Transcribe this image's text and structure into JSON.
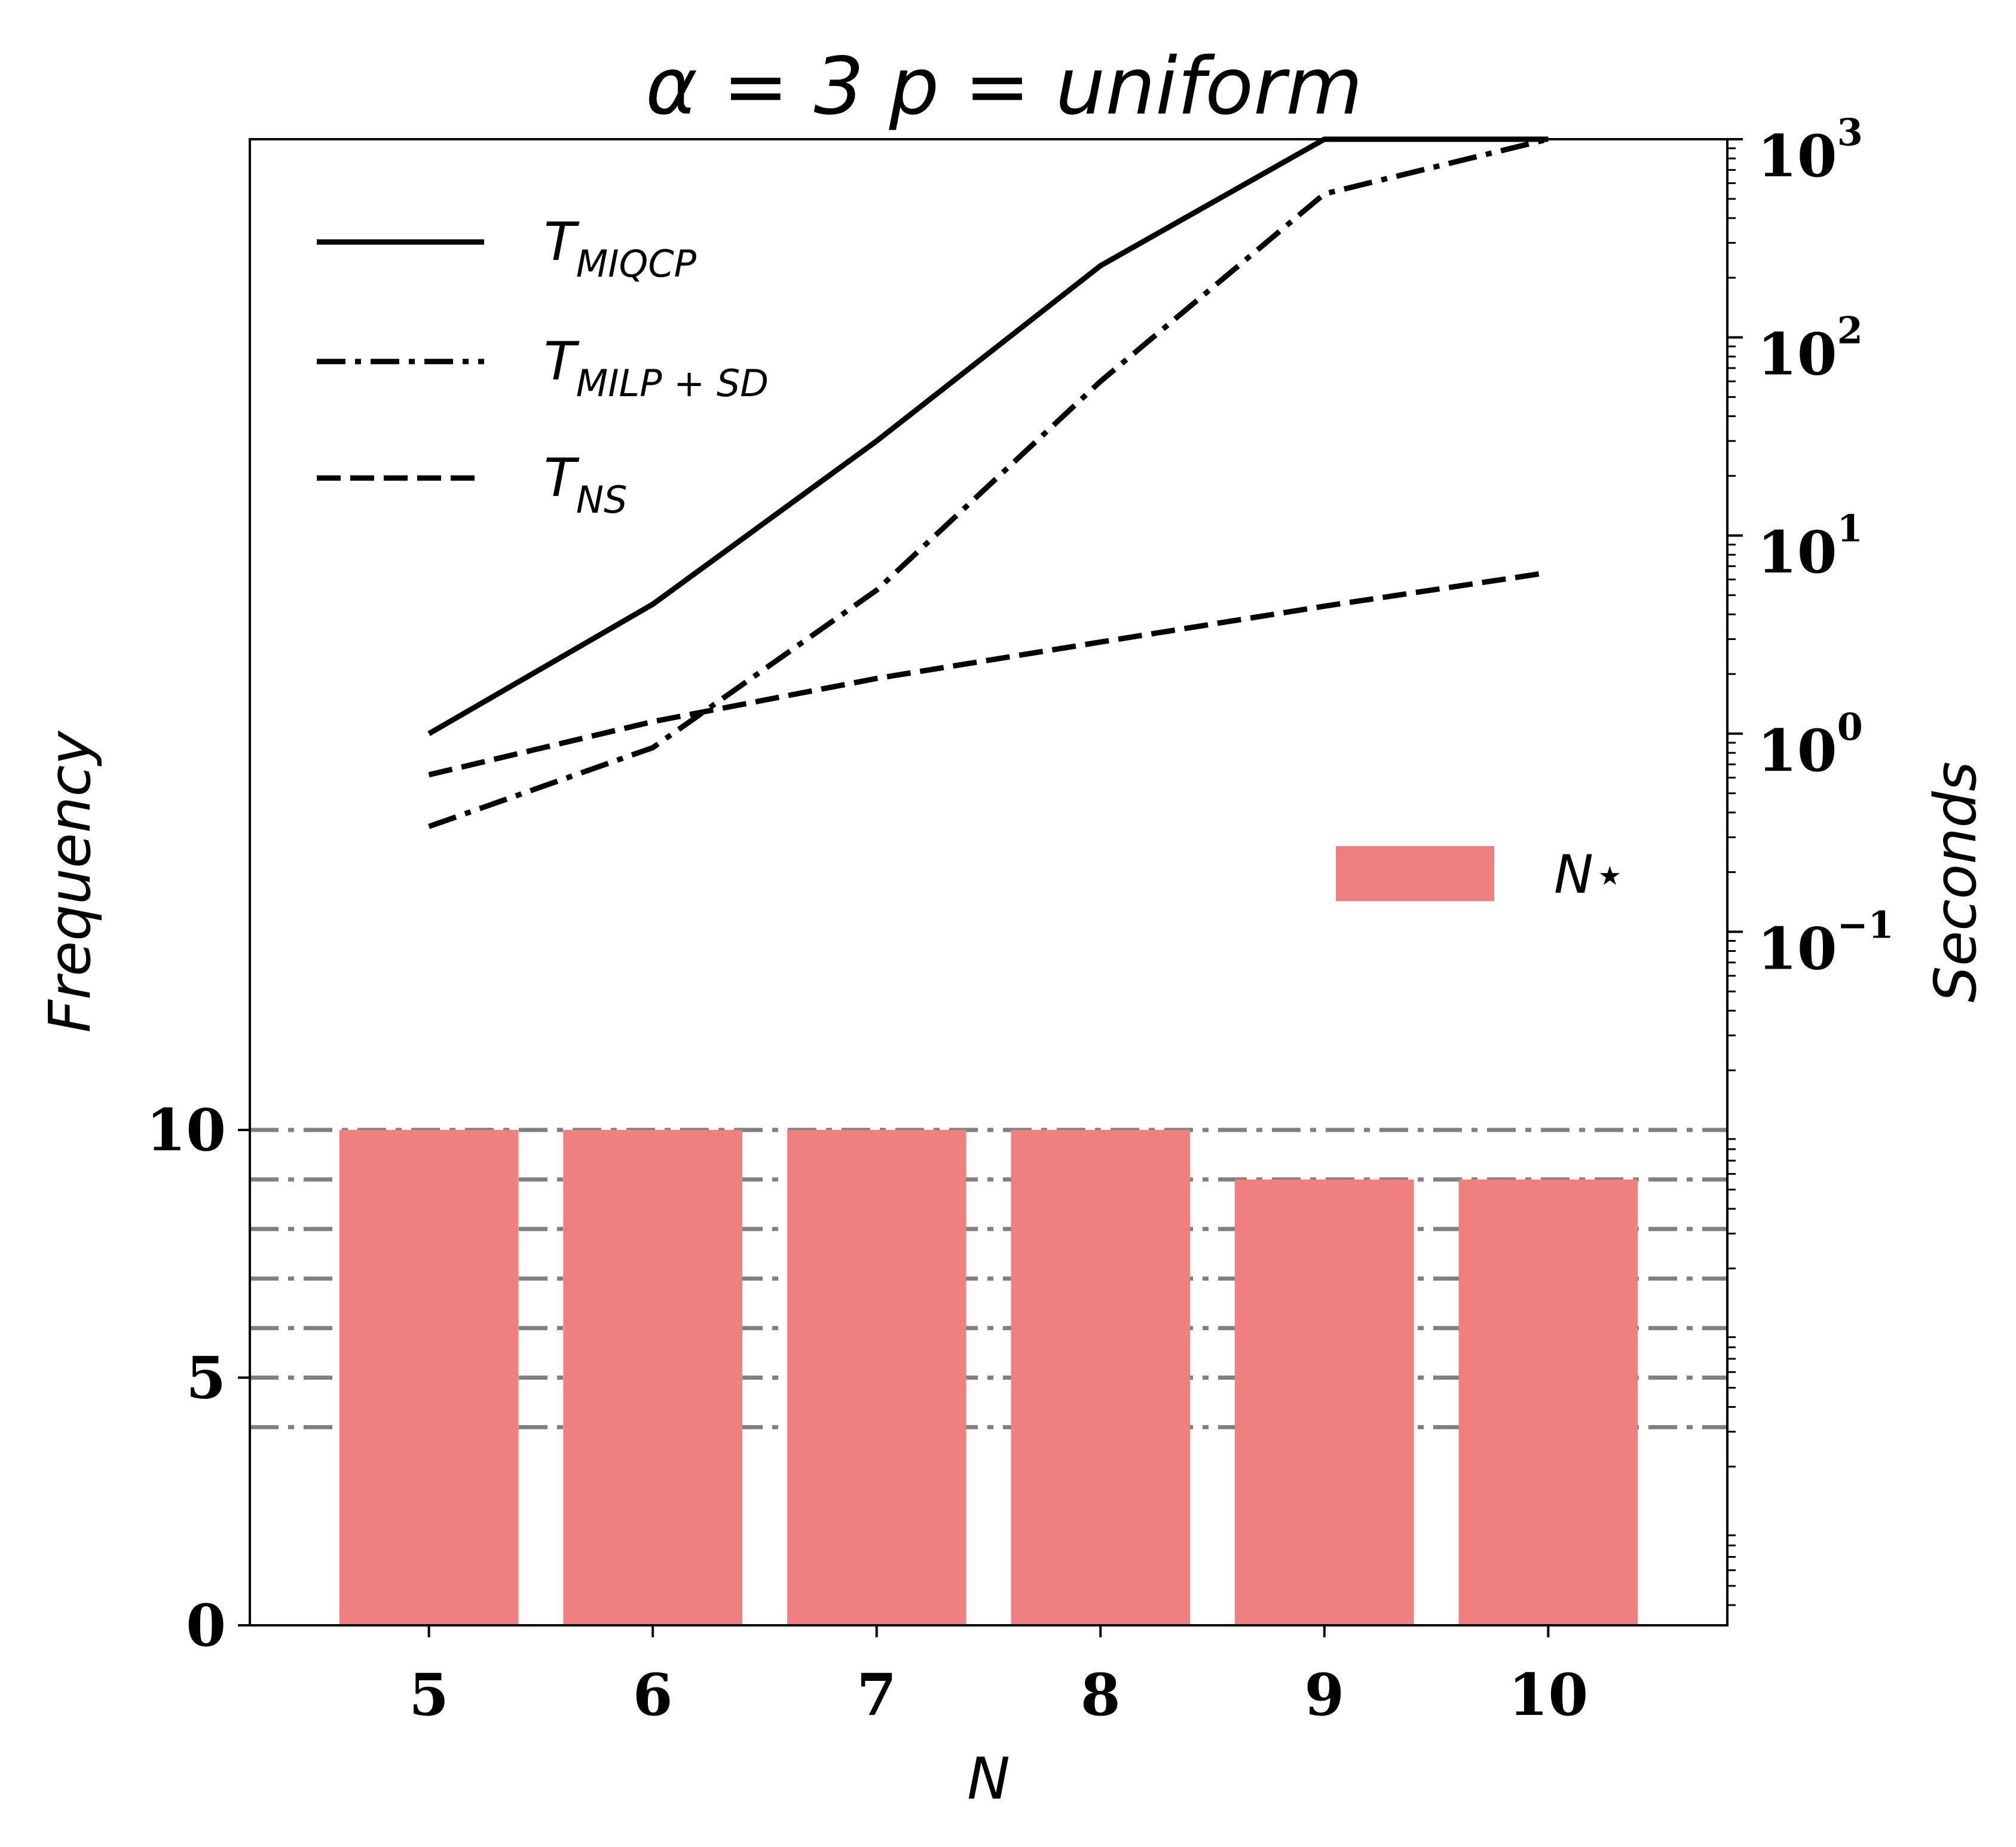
{
  "chart_data": {
    "type": "bar",
    "title": "α = 3  p = uniform",
    "xlabel": "N",
    "ylabel": "Frequency",
    "ylabel_right": "Seconds",
    "categories": [
      5,
      6,
      7,
      8,
      9,
      10
    ],
    "bar_series": {
      "name": "N⋆",
      "values": [
        10,
        10,
        10,
        10,
        9,
        9
      ],
      "color": "#f08080"
    },
    "y_left": {
      "lim": [
        0,
        30
      ],
      "ticks": [
        0,
        5,
        10
      ],
      "tick_labels": [
        "0",
        "5",
        "10"
      ]
    },
    "y_right": {
      "scale": "log",
      "lim_exp": [
        -4.5,
        3
      ],
      "major_exps": [
        -1,
        0,
        1,
        2,
        3
      ],
      "major_labels": [
        {
          "base": "10",
          "exp": "−1"
        },
        {
          "base": "10",
          "exp": "0"
        },
        {
          "base": "10",
          "exp": "1"
        },
        {
          "base": "10",
          "exp": "2"
        },
        {
          "base": "10",
          "exp": "3"
        }
      ]
    },
    "line_series": [
      {
        "name": "MIQCP",
        "label_main": "T",
        "label_sub": "MIQCP",
        "style": "solid",
        "values": [
          1.0,
          4.5,
          30,
          230,
          1000,
          1000
        ]
      },
      {
        "name": "MILP+SD",
        "label_main": "T",
        "label_sub": "MILP + SD",
        "style": "dashdot",
        "values": [
          0.34,
          0.85,
          5.3,
          60,
          530,
          1000
        ]
      },
      {
        "name": "NS",
        "label_main": "T",
        "label_sub": "NS",
        "style": "dashed",
        "values": [
          0.62,
          1.15,
          1.9,
          2.9,
          4.4,
          6.5
        ]
      }
    ],
    "reference_lines": [
      {
        "value": 10,
        "style": "dashdot"
      },
      {
        "value": 9,
        "style": "dashdot"
      },
      {
        "value": 8,
        "style": "dashdot"
      },
      {
        "value": 7,
        "style": "dashdot"
      },
      {
        "value": 6,
        "style": "dashdot"
      },
      {
        "value": 5,
        "style": "dashdot"
      },
      {
        "value": 4,
        "style": "dashdot"
      }
    ],
    "reference_color": "#808080",
    "line_color": "#000000",
    "legend_lines_placement": "upper-left",
    "legend_bar_placement": "center-right",
    "grid": false
  }
}
